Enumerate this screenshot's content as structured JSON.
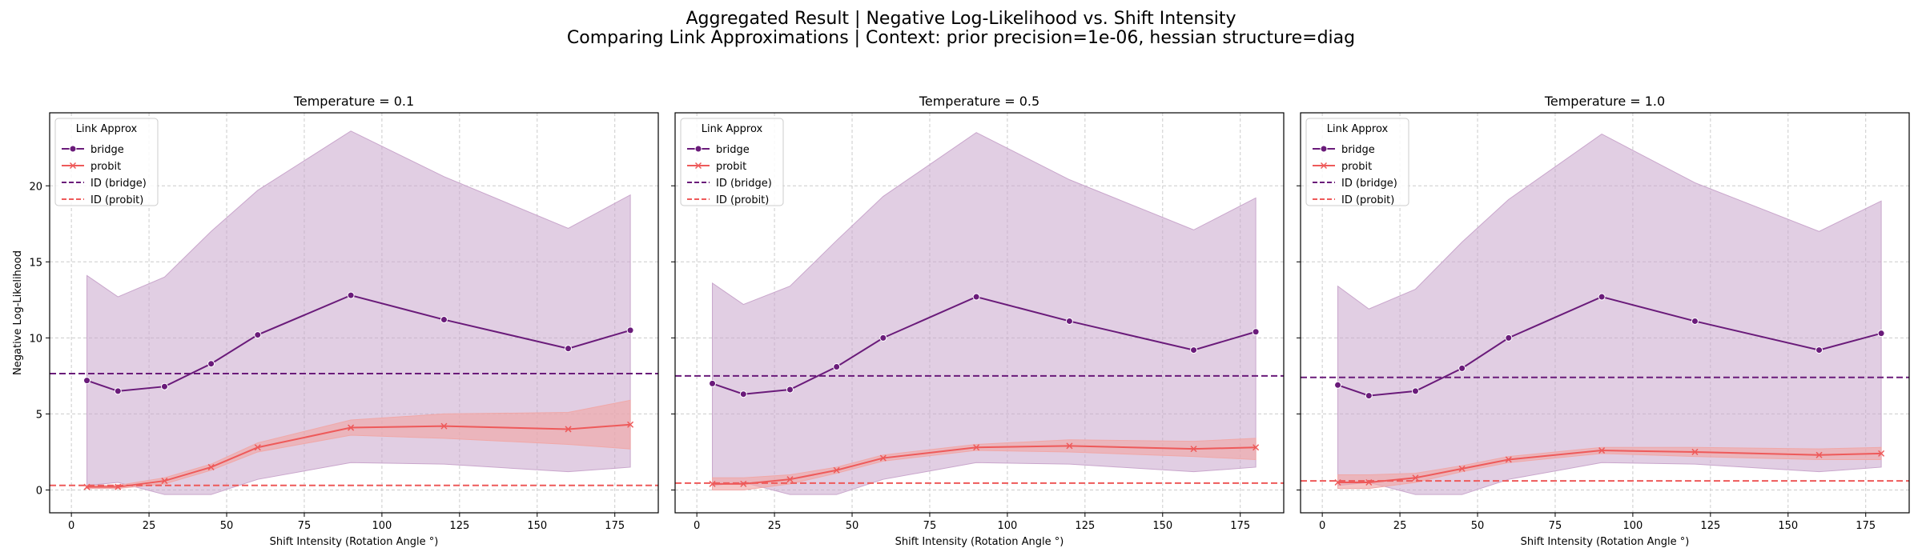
{
  "figure": {
    "title_line1": "Aggregated Result | Negative Log-Likelihood vs. Shift Intensity",
    "title_line2": "Comparing Link Approximations | Context: prior precision=1e-06, hessian structure=diag"
  },
  "colors": {
    "bridge": "#6a1b7a",
    "bridge_band": "#c9a6cc",
    "probit": "#ee5a5a",
    "probit_band": "#f0a8a8",
    "grid": "#cccccc"
  },
  "chart_data": [
    {
      "type": "line",
      "title": "Temperature = 0.1",
      "xlabel": "Shift Intensity (Rotation Angle °)",
      "ylabel": "Negative Log-Likelihood",
      "xlim": [
        -7,
        189
      ],
      "ylim": [
        -1.5,
        24.8
      ],
      "xticks": [
        0,
        25,
        50,
        75,
        100,
        125,
        150,
        175
      ],
      "yticks": [
        0,
        5,
        10,
        15,
        20
      ],
      "grid": true,
      "legend_title": "Link Approx",
      "legend_position": "top-left",
      "legend_entries": [
        "bridge",
        "probit",
        "ID (bridge)",
        "ID (probit)"
      ],
      "x": [
        5,
        15,
        30,
        45,
        60,
        90,
        120,
        160,
        180
      ],
      "series": [
        {
          "name": "bridge",
          "marker": "circle",
          "values": [
            7.2,
            6.5,
            6.8,
            8.3,
            10.2,
            12.8,
            11.2,
            9.3,
            10.5
          ],
          "lower": [
            0.3,
            0.5,
            -0.3,
            -0.3,
            0.7,
            1.8,
            1.7,
            1.2,
            1.5
          ],
          "upper": [
            14.1,
            12.7,
            14.0,
            17.0,
            19.7,
            23.6,
            20.6,
            17.2,
            19.4
          ]
        },
        {
          "name": "probit",
          "marker": "x",
          "values": [
            0.2,
            0.2,
            0.6,
            1.5,
            2.8,
            4.1,
            4.2,
            4.0,
            4.3
          ],
          "lower": [
            0.1,
            0.1,
            0.4,
            1.3,
            2.5,
            3.6,
            3.4,
            3.0,
            2.7
          ],
          "upper": [
            0.3,
            0.3,
            0.8,
            1.7,
            3.1,
            4.6,
            5.0,
            5.1,
            5.9
          ]
        }
      ],
      "hlines": [
        {
          "name": "ID (bridge)",
          "value": 7.65
        },
        {
          "name": "ID (probit)",
          "value": 0.3
        }
      ]
    },
    {
      "type": "line",
      "title": "Temperature = 0.5",
      "xlabel": "Shift Intensity (Rotation Angle °)",
      "ylabel": "",
      "xlim": [
        -7,
        189
      ],
      "ylim": [
        -1.5,
        24.8
      ],
      "xticks": [
        0,
        25,
        50,
        75,
        100,
        125,
        150,
        175
      ],
      "yticks": [
        0,
        5,
        10,
        15,
        20
      ],
      "grid": true,
      "legend_title": "Link Approx",
      "legend_position": "top-left",
      "legend_entries": [
        "bridge",
        "probit",
        "ID (bridge)",
        "ID (probit)"
      ],
      "x": [
        5,
        15,
        30,
        45,
        60,
        90,
        120,
        160,
        180
      ],
      "series": [
        {
          "name": "bridge",
          "marker": "circle",
          "values": [
            7.0,
            6.3,
            6.6,
            8.1,
            10.0,
            12.7,
            11.1,
            9.2,
            10.4
          ],
          "lower": [
            0.3,
            0.5,
            -0.3,
            -0.3,
            0.7,
            1.8,
            1.7,
            1.2,
            1.5
          ],
          "upper": [
            13.6,
            12.2,
            13.4,
            16.4,
            19.3,
            23.5,
            20.4,
            17.1,
            19.2
          ]
        },
        {
          "name": "probit",
          "marker": "x",
          "values": [
            0.4,
            0.4,
            0.7,
            1.3,
            2.1,
            2.8,
            2.9,
            2.7,
            2.8
          ],
          "lower": [
            0.0,
            0.0,
            0.4,
            1.1,
            1.9,
            2.6,
            2.5,
            2.2,
            2.0
          ],
          "upper": [
            0.8,
            0.8,
            1.0,
            1.5,
            2.3,
            3.0,
            3.3,
            3.2,
            3.4
          ]
        }
      ],
      "hlines": [
        {
          "name": "ID (bridge)",
          "value": 7.5
        },
        {
          "name": "ID (probit)",
          "value": 0.45
        }
      ]
    },
    {
      "type": "line",
      "title": "Temperature = 1.0",
      "xlabel": "Shift Intensity (Rotation Angle °)",
      "ylabel": "",
      "xlim": [
        -7,
        189
      ],
      "ylim": [
        -1.5,
        24.8
      ],
      "xticks": [
        0,
        25,
        50,
        75,
        100,
        125,
        150,
        175
      ],
      "yticks": [
        0,
        5,
        10,
        15,
        20
      ],
      "grid": true,
      "legend_title": "Link Approx",
      "legend_position": "top-left",
      "legend_entries": [
        "bridge",
        "probit",
        "ID (bridge)",
        "ID (probit)"
      ],
      "x": [
        5,
        15,
        30,
        45,
        60,
        90,
        120,
        160,
        180
      ],
      "series": [
        {
          "name": "bridge",
          "marker": "circle",
          "values": [
            6.9,
            6.2,
            6.5,
            8.0,
            10.0,
            12.7,
            11.1,
            9.2,
            10.3
          ],
          "lower": [
            0.3,
            0.5,
            -0.3,
            -0.3,
            0.7,
            1.8,
            1.7,
            1.2,
            1.5
          ],
          "upper": [
            13.4,
            11.9,
            13.2,
            16.3,
            19.1,
            23.4,
            20.2,
            17.0,
            19.0
          ]
        },
        {
          "name": "probit",
          "marker": "x",
          "values": [
            0.5,
            0.5,
            0.8,
            1.4,
            2.0,
            2.6,
            2.5,
            2.3,
            2.4
          ],
          "lower": [
            0.1,
            0.1,
            0.5,
            1.2,
            1.8,
            2.4,
            2.2,
            2.0,
            2.0
          ],
          "upper": [
            1.0,
            1.0,
            1.1,
            1.6,
            2.2,
            2.8,
            2.8,
            2.7,
            2.8
          ]
        }
      ],
      "hlines": [
        {
          "name": "ID (bridge)",
          "value": 7.4
        },
        {
          "name": "ID (probit)",
          "value": 0.6
        }
      ]
    }
  ]
}
